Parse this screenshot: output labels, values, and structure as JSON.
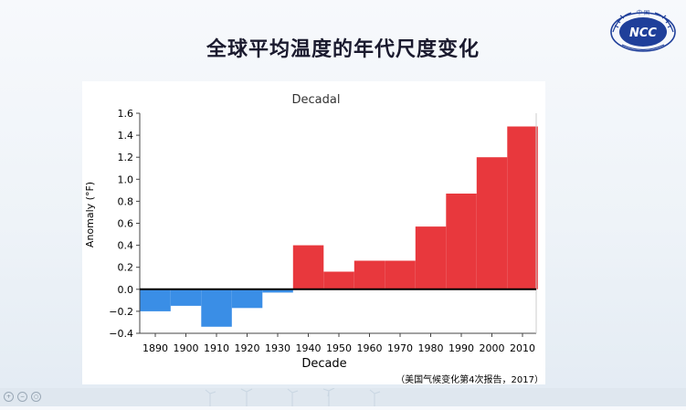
{
  "slide": {
    "title": "全球平均温度的年代尺度变化",
    "citation": "（美国气候变化第4次报告，2017）"
  },
  "logo": {
    "label": "NCC",
    "top_text": "中 国",
    "icon": "globe-laurel-emblem-icon"
  },
  "viewer_controls": [
    "zoom-in-icon",
    "zoom-out-icon",
    "fit-icon"
  ],
  "colors": {
    "positive": "#e8383d",
    "negative": "#3a8ee6",
    "zero_line": "#000000",
    "axis": "#444444",
    "logo_blue": "#1f3f9a"
  },
  "chart_data": {
    "type": "bar",
    "title": "Decadal",
    "xlabel": "Decade",
    "ylabel": "Anomaly (°F)",
    "ylim": [
      -0.4,
      1.6
    ],
    "yticks": [
      -0.4,
      -0.2,
      0.0,
      0.2,
      0.4,
      0.6,
      0.8,
      1.0,
      1.2,
      1.4,
      1.6
    ],
    "ytick_labels": [
      "−0.4",
      "−0.2",
      "0.0",
      "0.2",
      "0.4",
      "0.6",
      "0.8",
      "1.0",
      "1.2",
      "1.4",
      "1.6"
    ],
    "categories": [
      "1890",
      "1900",
      "1910",
      "1920",
      "1930",
      "1940",
      "1950",
      "1960",
      "1970",
      "1980",
      "1990",
      "2000",
      "2010"
    ],
    "x_tick_labels": [
      "1890",
      "1900",
      "1910",
      "1920",
      "1930",
      "1940",
      "1950",
      "1960",
      "1970",
      "1980",
      "1990",
      "2000",
      "2010"
    ],
    "values": [
      -0.2,
      -0.15,
      -0.34,
      -0.17,
      -0.03,
      0.4,
      0.16,
      0.26,
      0.26,
      0.57,
      0.87,
      1.2,
      1.48
    ],
    "grid": false,
    "legend": "none"
  }
}
